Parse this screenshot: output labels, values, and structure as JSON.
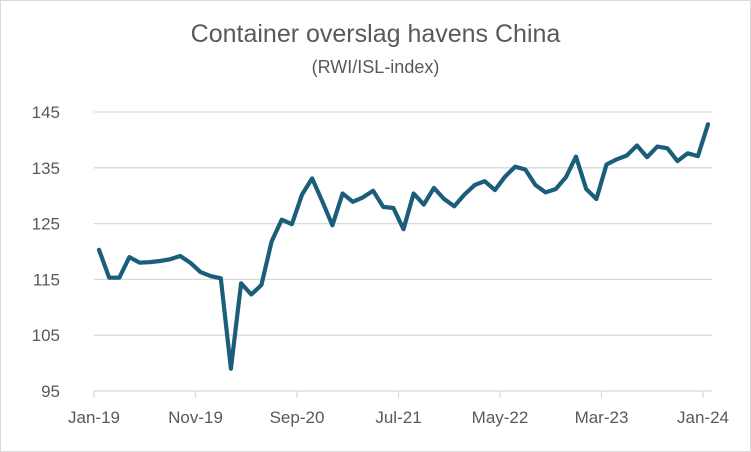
{
  "chart_data": {
    "type": "line",
    "title": "Container overslag havens China",
    "subtitle": "(RWI/ISL-index)",
    "xlabel": "",
    "ylabel": "",
    "ylim": [
      95,
      145
    ],
    "yticks": [
      95,
      105,
      115,
      125,
      135,
      145
    ],
    "xtick_labels": [
      "Jan-19",
      "Nov-19",
      "Sep-20",
      "Jul-21",
      "May-22",
      "Mar-23",
      "Jan-24"
    ],
    "xtick_every_months": 10,
    "grid": true,
    "legend": "none",
    "line_color": "#1b5e7c",
    "series": [
      {
        "name": "RWI/ISL-index",
        "start": "Jan-19",
        "frequency": "monthly",
        "values": [
          120.3,
          115.3,
          115.3,
          119.0,
          118.0,
          118.1,
          118.3,
          118.6,
          119.2,
          118.0,
          116.3,
          115.6,
          115.2,
          99.0,
          114.3,
          112.3,
          114.0,
          121.8,
          125.7,
          124.9,
          130.2,
          133.1,
          129.0,
          124.7,
          130.4,
          128.9,
          129.7,
          130.9,
          128.0,
          127.8,
          124.0,
          130.4,
          128.4,
          131.4,
          129.4,
          128.1,
          130.2,
          131.9,
          132.6,
          131.0,
          133.4,
          135.2,
          134.7,
          131.9,
          130.6,
          131.2,
          133.3,
          137.0,
          131.2,
          129.4,
          135.6,
          136.5,
          137.2,
          139.0,
          136.9,
          138.8,
          138.5,
          136.2,
          137.6,
          137.1,
          142.8
        ]
      }
    ]
  }
}
